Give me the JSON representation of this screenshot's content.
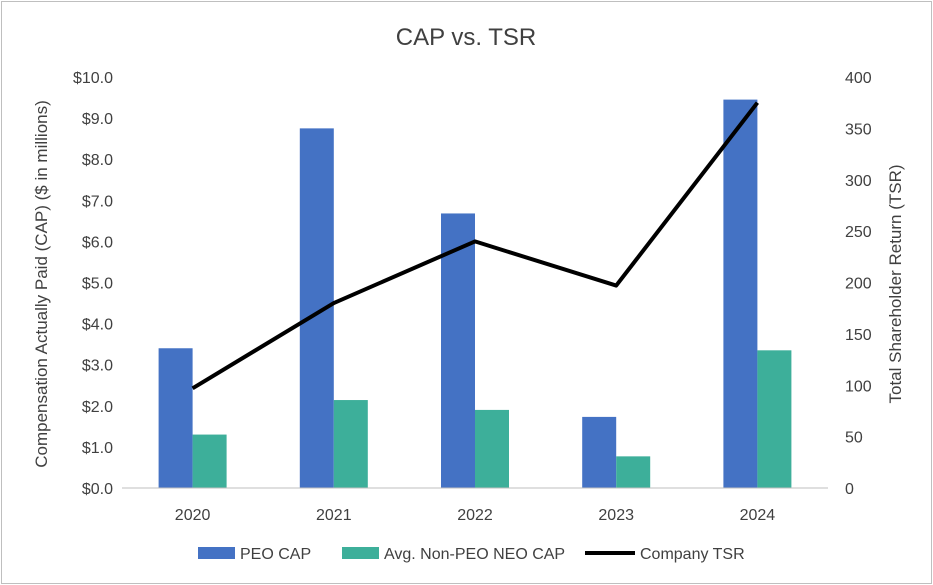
{
  "chart_data": {
    "type": "bar",
    "title": "CAP vs. TSR",
    "categories": [
      "2020",
      "2021",
      "2022",
      "2023",
      "2024"
    ],
    "series": [
      {
        "name": "PEO CAP",
        "type": "bar",
        "axis": "left",
        "color": "#4472c4",
        "values": [
          3.4,
          8.75,
          6.68,
          1.73,
          9.45
        ]
      },
      {
        "name": "Avg. Non-PEO NEO CAP",
        "type": "bar",
        "axis": "left",
        "color": "#3daf9a",
        "values": [
          1.3,
          2.14,
          1.9,
          0.77,
          3.35
        ]
      },
      {
        "name": "Company TSR",
        "type": "line",
        "axis": "right",
        "color": "#000000",
        "values": [
          97,
          180,
          240,
          197,
          375
        ]
      }
    ],
    "ylabel": "Compensation Actually Paid (CAP) ($ in millions)",
    "ylabel_right": "Total Shareholder Return (TSR)",
    "ylim": [
      0,
      10
    ],
    "ylim_right": [
      0,
      400
    ],
    "yticks": [
      "$0.0",
      "$1.0",
      "$2.0",
      "$3.0",
      "$4.0",
      "$5.0",
      "$6.0",
      "$7.0",
      "$8.0",
      "$9.0",
      "$10.0"
    ],
    "yticks_right": [
      "0",
      "50",
      "100",
      "150",
      "200",
      "250",
      "300",
      "350",
      "400"
    ],
    "grid": false,
    "legend_position": "bottom"
  }
}
